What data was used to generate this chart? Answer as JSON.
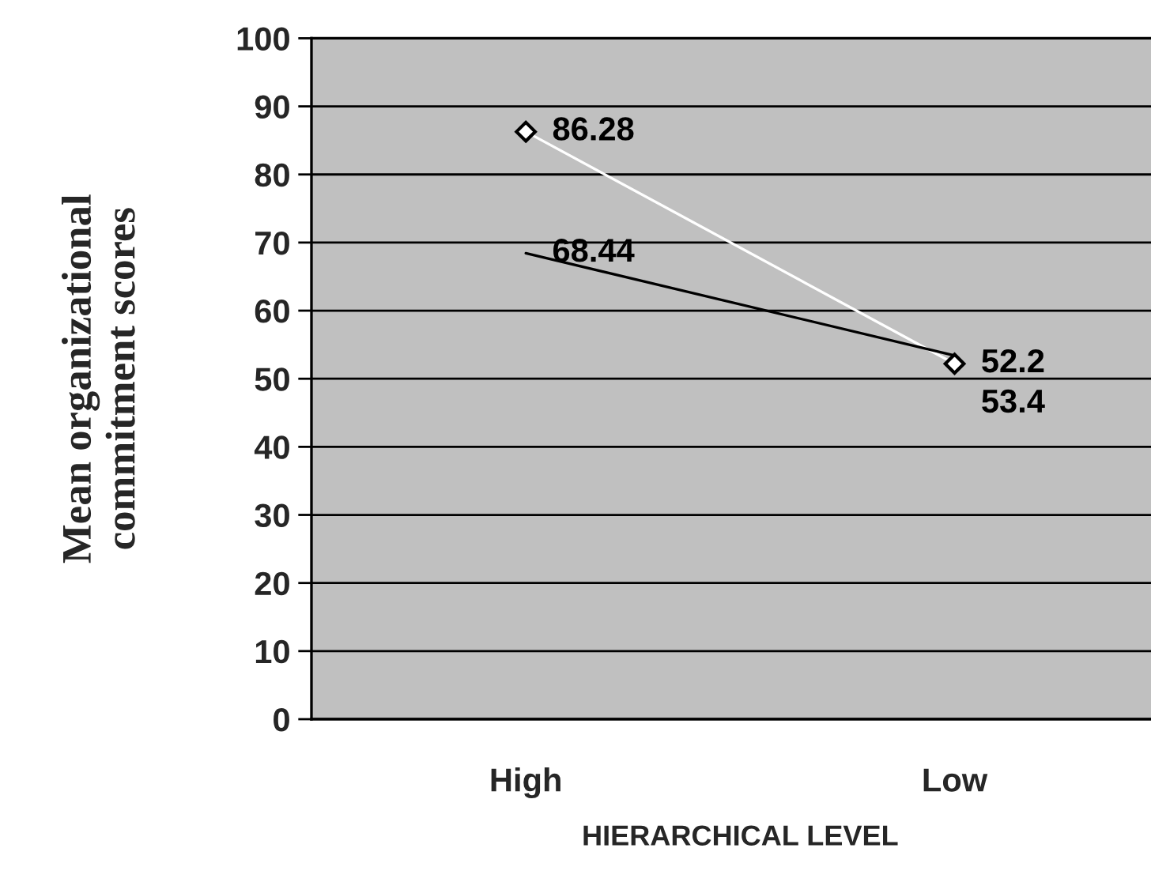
{
  "chart_data": {
    "type": "line",
    "xlabel": "HIERARCHICAL LEVEL",
    "ylabel": "Mean organizational\ncommitment scores",
    "categories": [
      "High",
      "Low"
    ],
    "series": [
      {
        "color": "#ffffff",
        "values": [
          86.28,
          52.2
        ],
        "marker": "diamond"
      },
      {
        "color": "#000000",
        "values": [
          68.44,
          53.4
        ],
        "marker": "none"
      }
    ],
    "ylim": [
      0,
      100
    ],
    "yticks": [
      0,
      10,
      20,
      30,
      40,
      50,
      60,
      70,
      80,
      90,
      100
    ],
    "grid": "y",
    "legend": false,
    "data_labels": true,
    "line_style": "solid"
  }
}
